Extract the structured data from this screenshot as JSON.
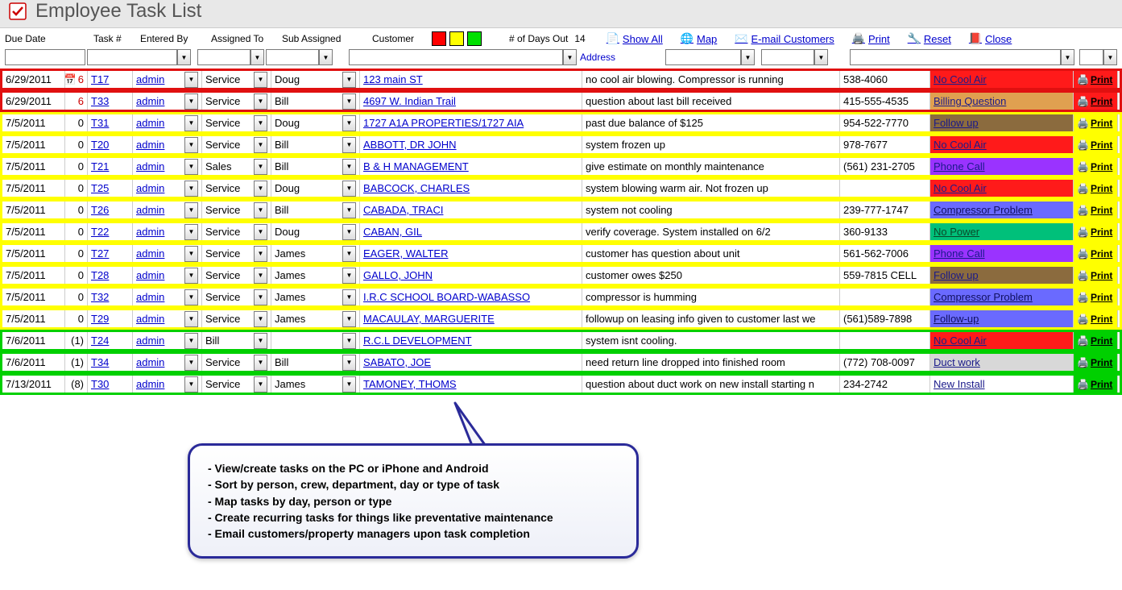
{
  "title": "Employee Task List",
  "toolbar": {
    "headers": {
      "due_date": "Due Date",
      "task_num": "Task #",
      "entered_by": "Entered By",
      "assigned_to": "Assigned To",
      "sub_assigned": "Sub Assigned",
      "customer": "Customer",
      "days_out": "# of Days Out"
    },
    "days_out_value": "14",
    "links": {
      "show_all": "Show All",
      "map": "Map",
      "email": "E-mail Customers",
      "print": "Print",
      "reset": "Reset",
      "close": "Close"
    },
    "address_label": "Address",
    "legend_colors": {
      "red": "#ff0000",
      "yellow": "#ffff00",
      "green": "#00e000"
    }
  },
  "status_styles": {
    "no_cool_air": {
      "bg": "#ff1a1a",
      "fg": "#1a1a8a"
    },
    "billing_question": {
      "bg": "#e0a050",
      "fg": "#1a1a8a"
    },
    "follow_up": {
      "bg": "#8b6b3e",
      "fg": "#1a1a8a"
    },
    "phone_call": {
      "bg": "#9a33ff",
      "fg": "#1a1a8a"
    },
    "compressor_problem": {
      "bg": "#6a6aff",
      "fg": "#101060"
    },
    "no_power": {
      "bg": "#00c07a",
      "fg": "#0a4a2a"
    },
    "followup2": {
      "bg": "#6a6aff",
      "fg": "#101060"
    },
    "duct_work": {
      "bg": "#d8d8d8",
      "fg": "#1a1a8a"
    },
    "new_install": {
      "bg": "#ffffff",
      "fg": "#1a1a8a"
    }
  },
  "rows": [
    {
      "outline": "red",
      "due": "6/29/2011",
      "days": "6",
      "days_red": true,
      "cal_icon": true,
      "task": "T17",
      "entered": "admin",
      "assigned": "Service",
      "sub": "Doug",
      "customer": "123 main ST",
      "desc": "no cool air blowing.  Compressor is running",
      "phone": "538-4060",
      "status_key": "no_cool_air",
      "status": "No Cool Air",
      "print_bg": "#ff1a1a"
    },
    {
      "outline": "red",
      "due": "6/29/2011",
      "days": "6",
      "days_red": true,
      "task": "T33",
      "entered": "admin",
      "assigned": "Service",
      "sub": "Bill",
      "customer": "4697 W. Indian Trail",
      "desc": "question about last bill received",
      "phone": "415-555-4535",
      "status_key": "billing_question",
      "status": "Billing Question",
      "print_bg": "#ff1a1a"
    },
    {
      "outline": "yellow",
      "due": "7/5/2011",
      "days": "0",
      "task": "T31",
      "entered": "admin",
      "assigned": "Service",
      "sub": "Doug",
      "customer": "1727 A1A PROPERTIES/1727 AIA",
      "desc": "past due balance of $125",
      "phone": "954-522-7770",
      "status_key": "follow_up",
      "status": "Follow up",
      "print_bg": "#ffff00"
    },
    {
      "outline": "yellow",
      "due": "7/5/2011",
      "days": "0",
      "task": "T20",
      "entered": "admin",
      "assigned": "Service",
      "sub": "Bill",
      "customer": "ABBOTT, DR JOHN",
      "desc": "system frozen up",
      "phone": "978-7677",
      "status_key": "no_cool_air",
      "status": "No Cool Air",
      "print_bg": "#ffff00"
    },
    {
      "outline": "yellow",
      "due": "7/5/2011",
      "days": "0",
      "task": "T21",
      "entered": "admin",
      "assigned": "Sales",
      "sub": "Bill",
      "customer": "B & H MANAGEMENT",
      "desc": "give estimate on monthly maintenance",
      "phone": "(561) 231-2705",
      "status_key": "phone_call",
      "status": "Phone Call",
      "print_bg": "#ffff00"
    },
    {
      "outline": "yellow",
      "due": "7/5/2011",
      "days": "0",
      "task": "T25",
      "entered": "admin",
      "assigned": "Service",
      "sub": "Doug",
      "customer": "BABCOCK, CHARLES",
      "desc": "system blowing warm air.  Not frozen up",
      "phone": "",
      "status_key": "no_cool_air",
      "status": "No Cool Air",
      "print_bg": "#ffff00"
    },
    {
      "outline": "yellow",
      "due": "7/5/2011",
      "days": "0",
      "task": "T26",
      "entered": "admin",
      "assigned": "Service",
      "sub": "Bill",
      "customer": "CABADA, TRACI",
      "desc": "system not cooling",
      "phone": "239-777-1747",
      "status_key": "compressor_problem",
      "status": "Compressor Problem",
      "print_bg": "#ffff00"
    },
    {
      "outline": "yellow",
      "due": "7/5/2011",
      "days": "0",
      "task": "T22",
      "entered": "admin",
      "assigned": "Service",
      "sub": "Doug",
      "customer": "CABAN, GIL",
      "desc": "verify coverage.  System installed on 6/2",
      "phone": "360-9133",
      "status_key": "no_power",
      "status": "No Power",
      "print_bg": "#ffff00"
    },
    {
      "outline": "yellow",
      "due": "7/5/2011",
      "days": "0",
      "task": "T27",
      "entered": "admin",
      "assigned": "Service",
      "sub": "James",
      "customer": "EAGER, WALTER",
      "desc": "customer has question about unit",
      "phone": "561-562-7006",
      "status_key": "phone_call",
      "status": "Phone Call",
      "print_bg": "#ffff00"
    },
    {
      "outline": "yellow",
      "due": "7/5/2011",
      "days": "0",
      "task": "T28",
      "entered": "admin",
      "assigned": "Service",
      "sub": "James",
      "customer": "GALLO, JOHN",
      "desc": "customer owes $250",
      "phone": "559-7815 CELL",
      "status_key": "follow_up",
      "status": "Follow up",
      "print_bg": "#ffff00"
    },
    {
      "outline": "yellow",
      "due": "7/5/2011",
      "days": "0",
      "task": "T32",
      "entered": "admin",
      "assigned": "Service",
      "sub": "James",
      "customer": "I.R.C SCHOOL BOARD-WABASSO",
      "desc": "compressor is humming",
      "phone": "",
      "status_key": "compressor_problem",
      "status": "Compressor Problem",
      "print_bg": "#ffff00"
    },
    {
      "outline": "yellow",
      "due": "7/5/2011",
      "days": "0",
      "task": "T29",
      "entered": "admin",
      "assigned": "Service",
      "sub": "James",
      "customer": "MACAULAY, MARGUERITE",
      "desc": "followup on leasing info given to customer last we",
      "phone": "(561)589-7898",
      "status_key": "followup2",
      "status": "Follow-up",
      "print_bg": "#ffff00"
    },
    {
      "outline": "green",
      "due": "7/6/2011",
      "days": "(1)",
      "task": "T24",
      "entered": "admin",
      "assigned": "Bill",
      "sub": "",
      "customer": "R.C.L DEVELOPMENT",
      "desc": "system isnt cooling.",
      "phone": "",
      "status_key": "no_cool_air",
      "status": "No Cool Air",
      "print_bg": "#00d000"
    },
    {
      "outline": "green",
      "due": "7/6/2011",
      "days": "(1)",
      "task": "T34",
      "entered": "admin",
      "assigned": "Service",
      "sub": "Bill",
      "customer": "SABATO, JOE",
      "desc": "need return line dropped into finished room",
      "phone": "(772) 708-0097",
      "status_key": "duct_work",
      "status": "Duct work",
      "print_bg": "#00d000"
    },
    {
      "outline": "green",
      "due": "7/13/2011",
      "days": "(8)",
      "task": "T30",
      "entered": "admin",
      "assigned": "Service",
      "sub": "James",
      "customer": "TAMONEY, THOMS",
      "desc": "question about duct work on new install starting n",
      "phone": "234-2742",
      "status_key": "new_install",
      "status": "New Install",
      "print_bg": "#00d000"
    }
  ],
  "print_label": "Print",
  "callout": [
    "- View/create tasks on the PC or iPhone and Android",
    "- Sort by person, crew, department, day or type of task",
    "- Map tasks by day, person or type",
    "- Create recurring tasks for things like preventative maintenance",
    "- Email customers/property managers upon task completion"
  ]
}
